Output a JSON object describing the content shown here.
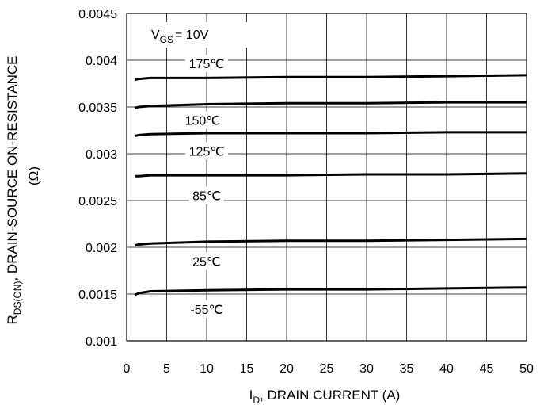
{
  "chart_data": {
    "type": "line",
    "xlabel_main": "I",
    "xlabel_sub": "D",
    "xlabel_rest": ", DRAIN CURRENT (A)",
    "ylabel_main": "R",
    "ylabel_sub": "DS(ON)",
    "ylabel_rest": ",   DRAIN-SOURCE ON-RESISTANCE",
    "ylabel_unit": "(Ω)",
    "condition_main": "V",
    "condition_sub": "GS",
    "condition_rest": "= 10V",
    "xlim": [
      0,
      50
    ],
    "ylim": [
      0.001,
      0.0045
    ],
    "x_ticks": [
      "0",
      "5",
      "10",
      "15",
      "20",
      "25",
      "30",
      "35",
      "40",
      "45",
      "50"
    ],
    "y_ticks": [
      "0.0045",
      "0.004",
      "0.0035",
      "0.003",
      "0.0025",
      "0.002",
      "0.0015",
      "0.001"
    ],
    "grid": true,
    "series": [
      {
        "name": "175℃",
        "x": [
          1,
          1.5,
          3,
          10,
          20,
          30,
          40,
          50
        ],
        "y": [
          0.00379,
          0.0038,
          0.00381,
          0.00381,
          0.00382,
          0.00382,
          0.00383,
          0.00384
        ]
      },
      {
        "name": "150℃",
        "x": [
          1,
          1.5,
          3,
          10,
          20,
          30,
          40,
          50
        ],
        "y": [
          0.00349,
          0.0035,
          0.00351,
          0.00353,
          0.00354,
          0.00354,
          0.00355,
          0.00355
        ]
      },
      {
        "name": "125℃",
        "x": [
          1,
          1.5,
          3,
          10,
          20,
          30,
          40,
          50
        ],
        "y": [
          0.00319,
          0.0032,
          0.00321,
          0.00322,
          0.00322,
          0.00322,
          0.00323,
          0.00323
        ]
      },
      {
        "name": "85℃",
        "x": [
          1,
          1.5,
          3,
          10,
          20,
          30,
          40,
          50
        ],
        "y": [
          0.00276,
          0.00276,
          0.00277,
          0.00277,
          0.00277,
          0.00278,
          0.00278,
          0.00279
        ]
      },
      {
        "name": "25℃",
        "x": [
          1,
          1.5,
          3,
          10,
          20,
          30,
          40,
          50
        ],
        "y": [
          0.00202,
          0.00203,
          0.00204,
          0.00206,
          0.00207,
          0.00207,
          0.00208,
          0.00209
        ]
      },
      {
        "name": "-55℃",
        "x": [
          1,
          1.5,
          3,
          10,
          20,
          30,
          40,
          50
        ],
        "y": [
          0.00149,
          0.00151,
          0.00153,
          0.00154,
          0.00155,
          0.00155,
          0.00156,
          0.00157
        ]
      }
    ]
  },
  "colors": {
    "line": "#000000",
    "grid": "#000000",
    "background": "#ffffff"
  }
}
